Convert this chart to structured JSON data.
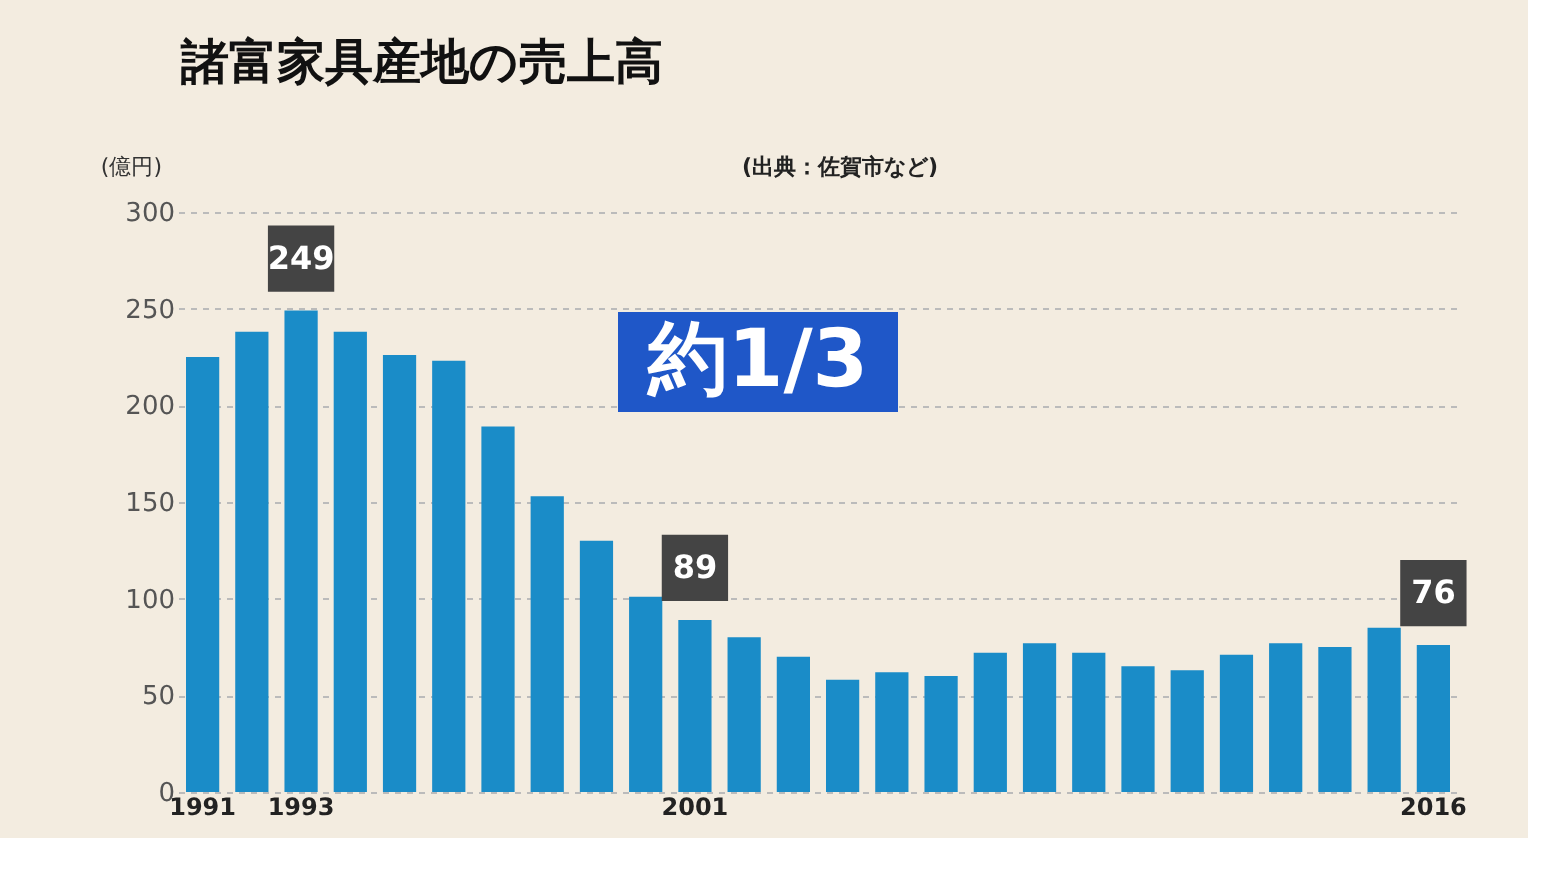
{
  "chart_data": {
    "type": "bar",
    "title": "諸富家具産地の売上高",
    "ylabel": "(億円)",
    "categories": [
      "1991",
      null,
      "1993",
      null,
      null,
      null,
      null,
      null,
      null,
      null,
      "2001",
      null,
      null,
      null,
      null,
      null,
      null,
      null,
      null,
      null,
      null,
      null,
      null,
      null,
      null,
      "2016"
    ],
    "values": [
      225,
      238,
      249,
      238,
      226,
      223,
      189,
      153,
      130,
      101,
      89,
      80,
      70,
      58,
      62,
      60,
      72,
      77,
      72,
      65,
      63,
      71,
      77,
      75,
      85,
      76
    ],
    "color": "#1a8cc8",
    "value_labels": [
      null,
      null,
      "249",
      null,
      null,
      null,
      null,
      null,
      null,
      null,
      "89",
      null,
      null,
      null,
      null,
      null,
      null,
      null,
      null,
      null,
      null,
      null,
      null,
      null,
      null,
      "76"
    ],
    "ylim": [
      0,
      300
    ],
    "yticks": [
      0,
      50,
      100,
      150,
      200,
      250,
      300
    ],
    "grid": "y",
    "annotations": [
      "(出典：佐賀市など)",
      "約1/3"
    ]
  }
}
